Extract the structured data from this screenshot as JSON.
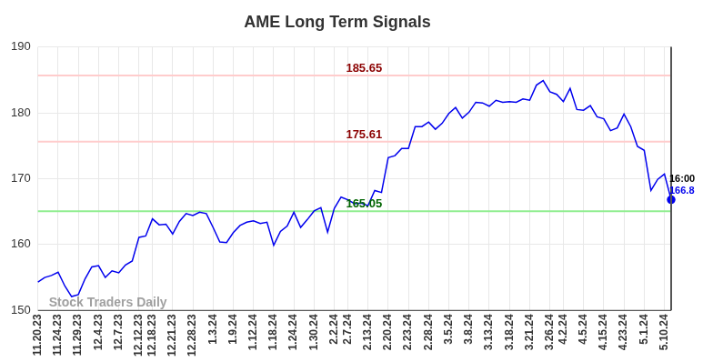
{
  "chart_data": {
    "type": "line",
    "title": "AME Long Term Signals",
    "watermark": "Stock Traders Daily",
    "categories": [
      "11.20.23",
      null,
      null,
      "11.24.23",
      null,
      null,
      "11.29.23",
      null,
      null,
      "12.4.23",
      null,
      null,
      "12.7.23",
      null,
      null,
      "12.12.23",
      null,
      "12.18.23",
      null,
      null,
      "12.21.23",
      null,
      null,
      "12.28.23",
      null,
      null,
      "1.3.24",
      null,
      null,
      "1.9.24",
      null,
      null,
      "1.12.24",
      null,
      null,
      "1.18.24",
      null,
      null,
      "1.24.24",
      null,
      null,
      "1.30.24",
      null,
      null,
      "2.2.24",
      null,
      "2.7.24",
      null,
      null,
      "2.13.24",
      null,
      null,
      "2.20.24",
      null,
      null,
      "2.23.24",
      null,
      null,
      "2.28.24",
      null,
      null,
      "3.5.24",
      null,
      null,
      "3.8.24",
      null,
      null,
      "3.13.24",
      null,
      null,
      "3.18.24",
      null,
      null,
      "3.21.24",
      null,
      null,
      "3.26.24",
      null,
      "4.2.24",
      null,
      null,
      "4.5.24",
      null,
      null,
      "4.15.24",
      null,
      null,
      "4.23.24",
      null,
      null,
      "5.1.24",
      null,
      null,
      "5.10.24",
      null
    ],
    "values": [
      154.3,
      155,
      155.3,
      155.8,
      153.7,
      152.1,
      152.4,
      154.8,
      156.6,
      156.8,
      155,
      156,
      155.7,
      156.9,
      157.5,
      161.1,
      161.3,
      163.9,
      163,
      163.1,
      161.6,
      163.5,
      164.7,
      164.4,
      164.9,
      164.7,
      162.6,
      160.4,
      160.3,
      161.8,
      162.9,
      163.4,
      163.6,
      163.2,
      163.4,
      159.9,
      162,
      162.8,
      164.9,
      162.6,
      163.8,
      165.1,
      165.6,
      161.9,
      165.5,
      167.2,
      166.8,
      166.2,
      166.3,
      165.9,
      168.2,
      167.9,
      173.2,
      173.5,
      174.6,
      174.6,
      177.9,
      177.9,
      178.6,
      177.5,
      178.4,
      179.9,
      180.8,
      179.2,
      180.1,
      181.6,
      181.5,
      181,
      181.9,
      181.6,
      181.7,
      181.6,
      182.1,
      181.9,
      184.2,
      184.9,
      183.2,
      182.8,
      181.7,
      183.7,
      180.5,
      180.4,
      181.1,
      179.4,
      179.1,
      177.3,
      177.7,
      179.8,
      177.9,
      174.9,
      174.3,
      168.2,
      169.9,
      170.7,
      166.8
    ],
    "color": "#0000ee",
    "signal_lines": [
      {
        "value": 185.65,
        "color": "#ffcccc",
        "label_color": "#8b0000"
      },
      {
        "value": 175.61,
        "color": "#ffcccc",
        "label_color": "#8b0000"
      },
      {
        "value": 165.05,
        "color": "#90ee90",
        "label_color": "#006400"
      }
    ],
    "last_time": "16:00",
    "last_value": 166.8,
    "ylim": [
      150,
      190
    ],
    "yticks": [
      150,
      160,
      170,
      180,
      190
    ],
    "grid": true
  }
}
